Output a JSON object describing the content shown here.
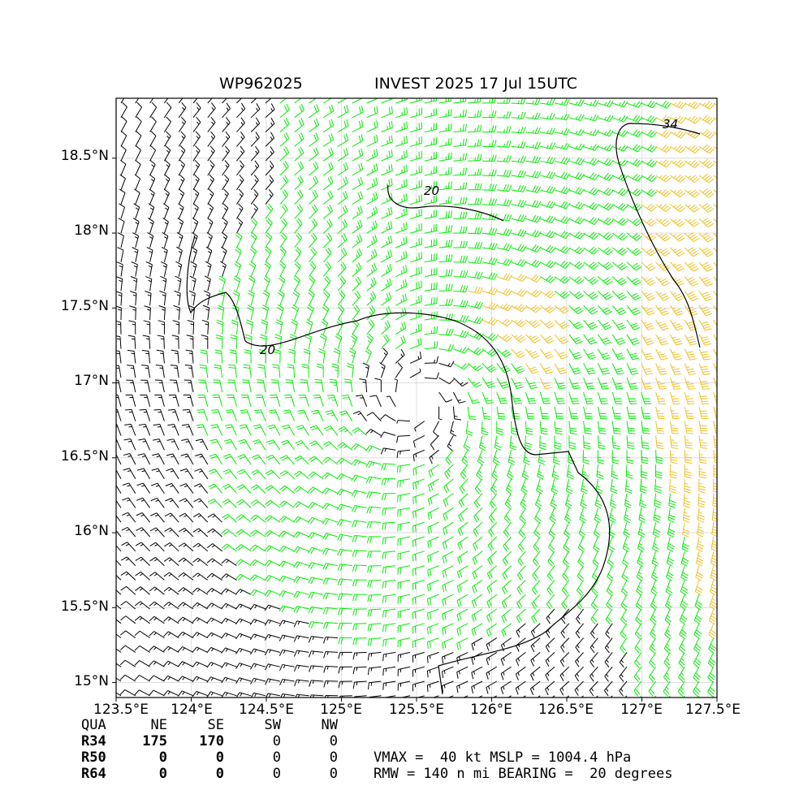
{
  "title": {
    "left": "WP962025",
    "right": "INVEST 2025 17 Jul 15UTC"
  },
  "axes": {
    "lon_range": [
      123.5,
      127.5
    ],
    "lat_range": [
      14.9,
      18.9
    ],
    "x_ticks": [
      "123.5°E",
      "124°E",
      "124.5°E",
      "125°E",
      "125.5°E",
      "126°E",
      "126.5°E",
      "127°E",
      "127.5°E"
    ],
    "x_tick_values": [
      123.5,
      124.0,
      124.5,
      125.0,
      125.5,
      126.0,
      126.5,
      127.0,
      127.5
    ],
    "y_ticks": [
      "15°N",
      "15.5°N",
      "16°N",
      "16.5°N",
      "17°N",
      "17.5°N",
      "18°N",
      "18.5°N"
    ],
    "y_tick_values": [
      15.0,
      15.5,
      16.0,
      16.5,
      17.0,
      17.5,
      18.0,
      18.5
    ],
    "grid": true
  },
  "chart_data": {
    "type": "wind-barbs",
    "center": {
      "lon": 125.5,
      "lat": 16.88
    },
    "contour_labels": [
      "20",
      "20",
      "34"
    ],
    "barb_colors": {
      "below_20": "#000000",
      "20_to_34": "#00ee00",
      "above_34": "#f0c020"
    }
  },
  "radii_table": {
    "header": [
      "QUA",
      "NE",
      "SE",
      "SW",
      "NW"
    ],
    "rows": [
      {
        "label": "R34",
        "values": [
          "175",
          "170",
          "0",
          "0"
        ]
      },
      {
        "label": "R50",
        "values": [
          "0",
          "0",
          "0",
          "0"
        ]
      },
      {
        "label": "R64",
        "values": [
          "0",
          "0",
          "0",
          "0"
        ]
      }
    ]
  },
  "storm_info": {
    "line1": "VMAX =  40 kt MSLP = 1004.4 hPa",
    "line2": "RMW = 140 n mi BEARING =  20 degrees"
  }
}
